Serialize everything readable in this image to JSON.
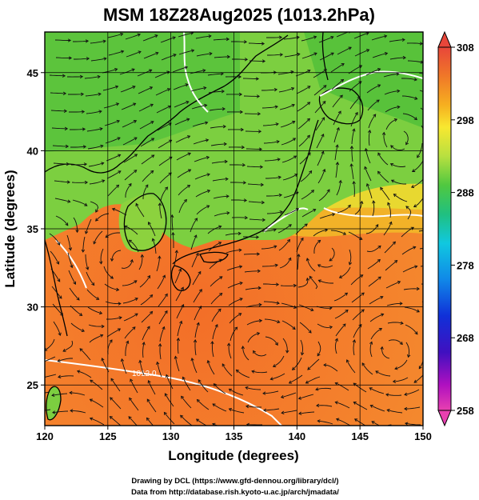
{
  "title": "MSM 18Z28Aug2025 (1013.2hPa)",
  "x_axis": {
    "label": "Longitude (degrees)",
    "ticks": [
      "120",
      "125",
      "130",
      "135",
      "140",
      "145",
      "150"
    ],
    "tick_values": [
      120,
      125,
      130,
      135,
      140,
      145,
      150
    ],
    "range": [
      120,
      150
    ]
  },
  "y_axis": {
    "label": "Latitude  (degrees)",
    "ticks": [
      "25",
      "30",
      "35",
      "40",
      "45"
    ],
    "tick_values": [
      25,
      30,
      35,
      40,
      45
    ],
    "range": [
      22.4,
      47.6
    ]
  },
  "colorbar": {
    "ticks": [
      "308",
      "298",
      "288",
      "278",
      "268",
      "258"
    ],
    "tick_values": [
      308,
      298,
      288,
      278,
      268,
      258
    ],
    "range": [
      258,
      308
    ],
    "colors_top_to_bottom": [
      "#e8463a",
      "#f07828",
      "#f6b020",
      "#f8e830",
      "#c8e640",
      "#7cd840",
      "#30c040",
      "#20c8a0",
      "#10c8e8",
      "#1080e8",
      "#1020d0",
      "#6010c0",
      "#c010c0",
      "#e840b0"
    ]
  },
  "field_colors": {
    "warm": "#f47a2c",
    "mid": "#f0aa28",
    "cool": "#7cd040",
    "land_cool": "#58c83a",
    "isobar": "#ffffff",
    "coast": "#000000",
    "grid": "#000000"
  },
  "isobar_label": "1012.0",
  "credits": {
    "line1": "Drawing by DCL (https://www.gfd-dennou.org/library/dcl/)",
    "line2": "Data from http://database.rish.kyoto-u.ac.jp/arch/jmadata/"
  }
}
